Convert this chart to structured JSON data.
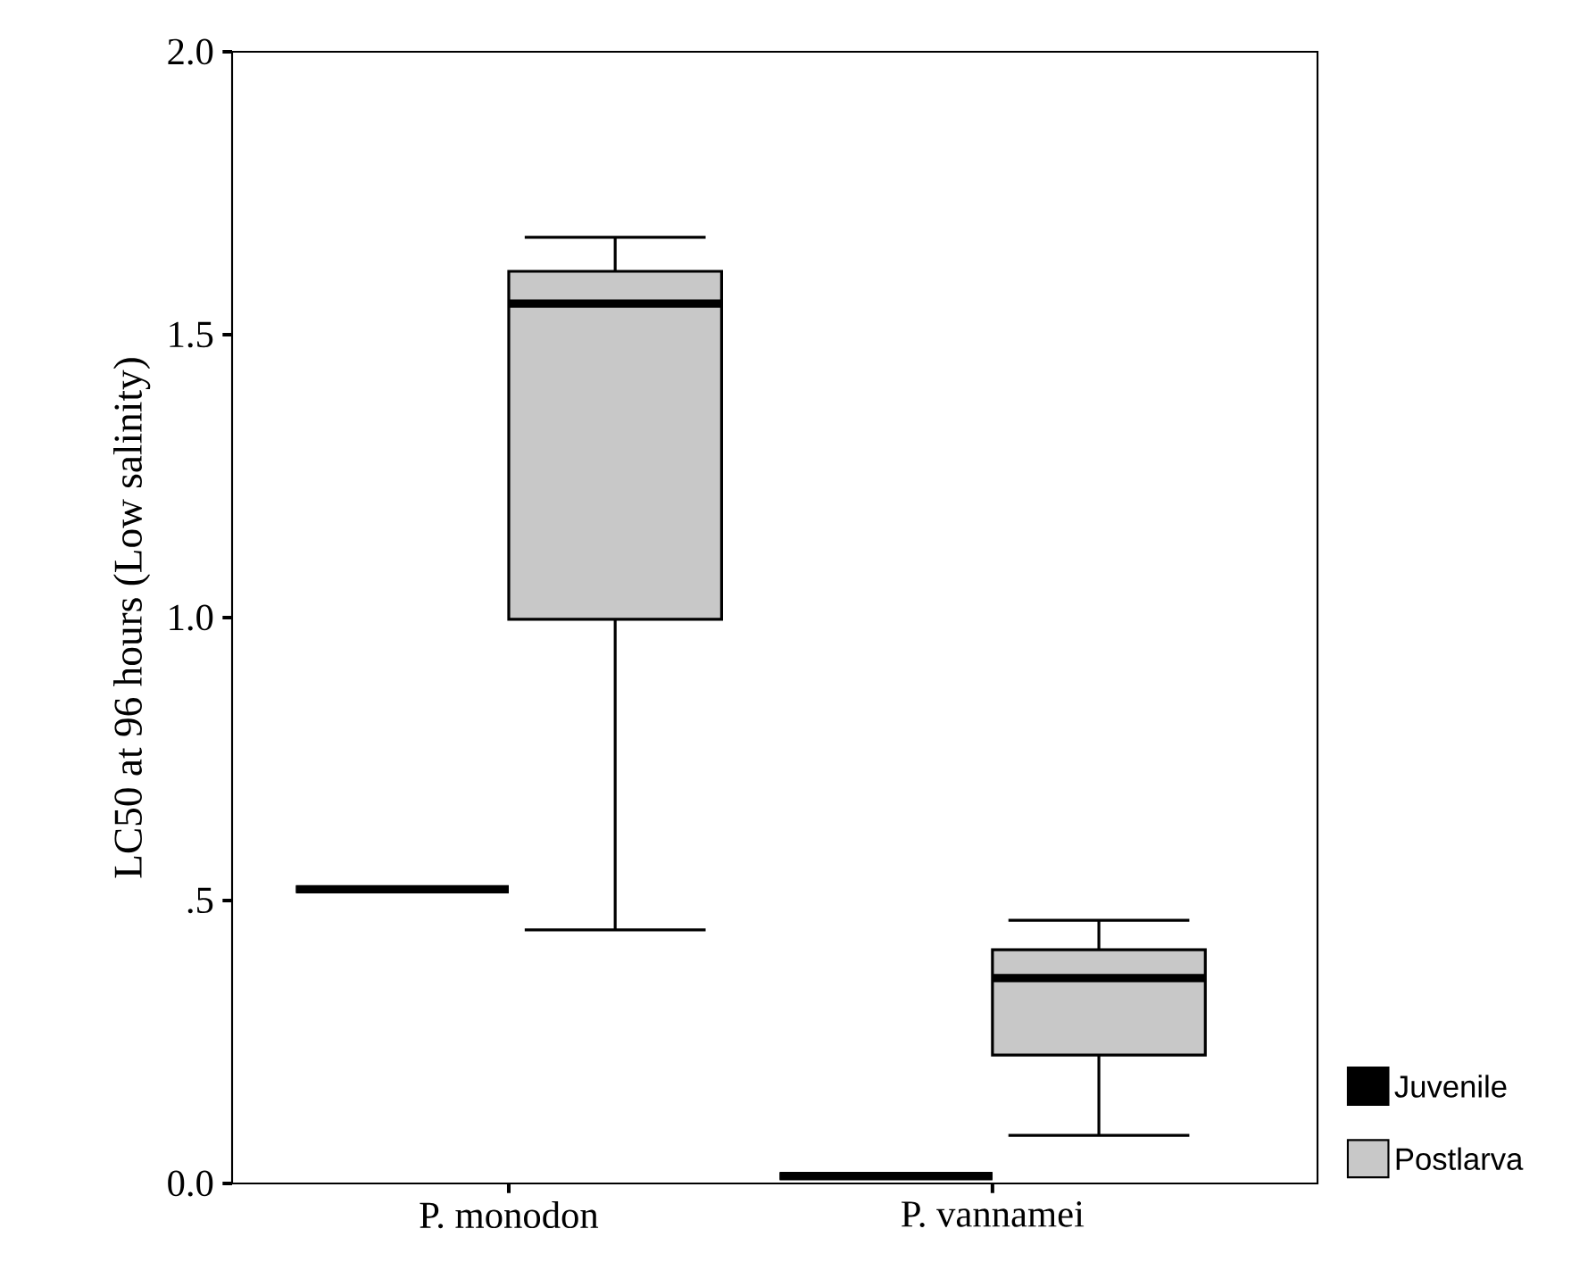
{
  "chart_data": {
    "type": "box",
    "categories": [
      "P. monodon",
      "P. vannamei"
    ],
    "ylabel": "LC50 at 96 hours (Low salinity)",
    "ylim": [
      0,
      2.0
    ],
    "yticks": [
      {
        "value": 0,
        "label": "0.0"
      },
      {
        "value": 0.5,
        "label": ".5"
      },
      {
        "value": 1.0,
        "label": "1.0"
      },
      {
        "value": 1.5,
        "label": "1.5"
      },
      {
        "value": 2.0,
        "label": "2.0"
      }
    ],
    "legend": "right",
    "series": [
      {
        "name": "Juvenile",
        "color": "#000000",
        "boxes": [
          {
            "low": 0.52,
            "q1": 0.52,
            "median": 0.52,
            "q3": 0.52,
            "high": 0.52
          },
          {
            "low": 0.013,
            "q1": 0.013,
            "median": 0.013,
            "q3": 0.013,
            "high": 0.013
          }
        ]
      },
      {
        "name": "Postlarva",
        "color": "#c8c8c8",
        "boxes": [
          {
            "low": 0.448,
            "q1": 0.997,
            "median": 1.555,
            "q3": 1.612,
            "high": 1.672
          },
          {
            "low": 0.085,
            "q1": 0.227,
            "median": 0.363,
            "q3": 0.413,
            "high": 0.465
          }
        ]
      }
    ]
  }
}
